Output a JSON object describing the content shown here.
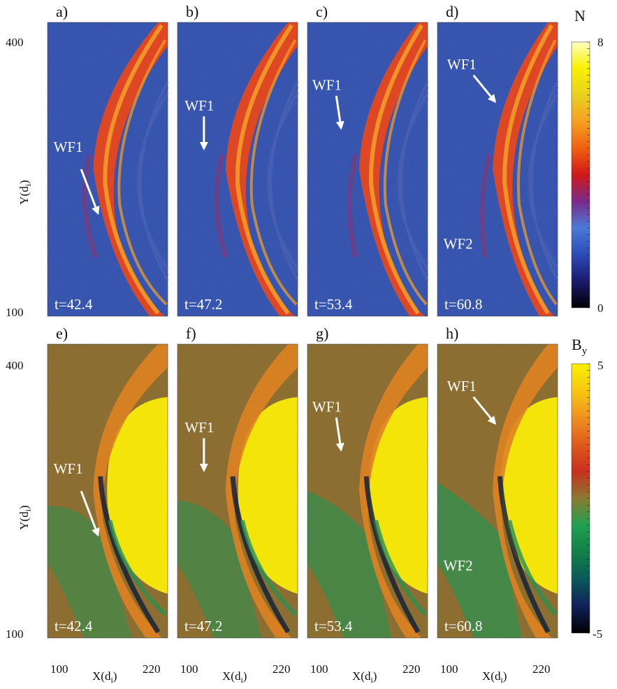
{
  "figure": {
    "rows": [
      {
        "quantity": "density",
        "panels": [
          {
            "label": "a)",
            "time": "t=42.4",
            "annotations": [
              "WF1"
            ]
          },
          {
            "label": "b)",
            "time": "t=47.2",
            "annotations": [
              "WF1"
            ]
          },
          {
            "label": "c)",
            "time": "t=53.4",
            "annotations": [
              "WF1"
            ]
          },
          {
            "label": "d)",
            "time": "t=60.8",
            "annotations": [
              "WF1",
              "WF2"
            ]
          }
        ],
        "y_axis": {
          "label": "Y(d",
          "label_sub": "i",
          "label_close": ")",
          "ticks": [
            "400",
            "100"
          ]
        },
        "colorbar": {
          "title": "N",
          "title_sub": "",
          "max": "8",
          "min": "0",
          "stops": [
            "#000000",
            "#1a1a6e",
            "#2d4ab8",
            "#4a7ad8",
            "#7a2a8a",
            "#d01818",
            "#f06010",
            "#f5a020",
            "#e8d020",
            "#f8f000",
            "#ffffc0"
          ]
        }
      },
      {
        "quantity": "By",
        "panels": [
          {
            "label": "e)",
            "time": "t=42.4",
            "annotations": [
              "WF1"
            ]
          },
          {
            "label": "f)",
            "time": "t=47.2",
            "annotations": [
              "WF1"
            ]
          },
          {
            "label": "g)",
            "time": "t=53.4",
            "annotations": [
              "WF1"
            ]
          },
          {
            "label": "h)",
            "time": "t=60.8",
            "annotations": [
              "WF1",
              "WF2"
            ]
          }
        ],
        "y_axis": {
          "label": "Y(d",
          "label_sub": "i",
          "label_close": ")",
          "ticks": [
            "400",
            "100"
          ]
        },
        "colorbar": {
          "title": "B",
          "title_sub": "y",
          "max": "5",
          "min": "-5",
          "stops": [
            "#000000",
            "#10205a",
            "#0a5a5a",
            "#108048",
            "#20a050",
            "#8a7a30",
            "#c83020",
            "#e05a1a",
            "#f09020",
            "#f8c810",
            "#f8f000"
          ]
        }
      }
    ],
    "x_axis": {
      "label": "X(d",
      "label_sub": "i",
      "label_close": ")",
      "ticks": [
        "100",
        "220"
      ]
    },
    "colors": {
      "density_background": "#2f4fae",
      "density_shock": "#e0401a",
      "density_shock_bright": "#f7a020",
      "by_background": "#8a6a2a",
      "by_yellow": "#f7e700",
      "by_green": "#1f8f4a",
      "by_dark": "#0c1a2e",
      "annotation": "#ffffff"
    }
  }
}
